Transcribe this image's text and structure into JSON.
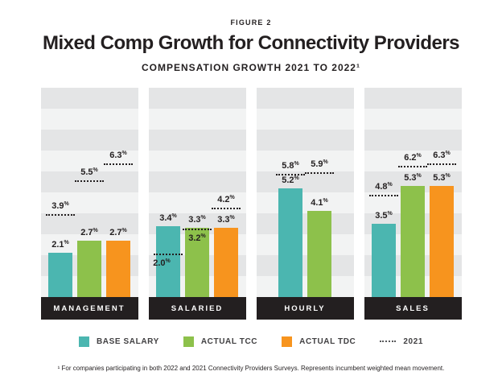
{
  "header": {
    "figure_label": "FIGURE 2",
    "title": "Mixed Comp Growth for Connectivity Providers",
    "subtitle": "COMPENSATION GROWTH 2021 TO 2022¹"
  },
  "colors": {
    "base_salary": "#4BB6B0",
    "actual_tcc": "#8DC14B",
    "actual_tdc": "#F7941E",
    "stripe_dark": "#e4e5e6",
    "stripe_light": "#f2f3f3",
    "category_band": "#231F20",
    "dotted_line": "#231F20"
  },
  "chart_data": {
    "type": "bar",
    "title": "Compensation Growth 2021 to 2022",
    "unit": "%",
    "ylim": [
      0,
      10
    ],
    "grid": "horizontal alternating bands, 1% per band",
    "legend_position": "bottom",
    "categories": [
      "MANAGEMENT",
      "SALARIED",
      "HOURLY",
      "SALES"
    ],
    "series": [
      {
        "name": "BASE SALARY",
        "color_key": "base_salary",
        "values": [
          2.1,
          3.4,
          5.2,
          3.5
        ],
        "values_2021": [
          3.9,
          2.0,
          5.8,
          4.8
        ],
        "label_2021_pos": [
          "above",
          "below_left",
          "above",
          "above"
        ]
      },
      {
        "name": "ACTUAL TCC",
        "color_key": "actual_tcc",
        "values": [
          2.7,
          3.3,
          4.1,
          5.3
        ],
        "values_2021": [
          5.5,
          3.2,
          5.9,
          6.2
        ],
        "label_2021_pos": [
          "above",
          "below",
          "above",
          "above"
        ]
      },
      {
        "name": "ACTUAL TDC",
        "color_key": "actual_tdc",
        "values": [
          2.7,
          3.3,
          null,
          5.3
        ],
        "values_2021": [
          6.3,
          4.2,
          null,
          6.3
        ],
        "label_2021_pos": [
          "above",
          "above",
          null,
          "above"
        ]
      }
    ],
    "annotation_2021_style": "black dotted line at 2021 value over each bar"
  },
  "legend": {
    "items": [
      {
        "label": "BASE SALARY",
        "swatch": "#4BB6B0",
        "type": "square"
      },
      {
        "label": "ACTUAL TCC",
        "swatch": "#8DC14B",
        "type": "square"
      },
      {
        "label": "ACTUAL TDC",
        "swatch": "#F7941E",
        "type": "square"
      },
      {
        "label": "2021",
        "swatch": null,
        "type": "dotted-line"
      }
    ]
  },
  "footnote": "¹ For companies participating in both 2022 and 2021 Connectivity Providers Surveys. Represents incumbent weighted mean movement."
}
